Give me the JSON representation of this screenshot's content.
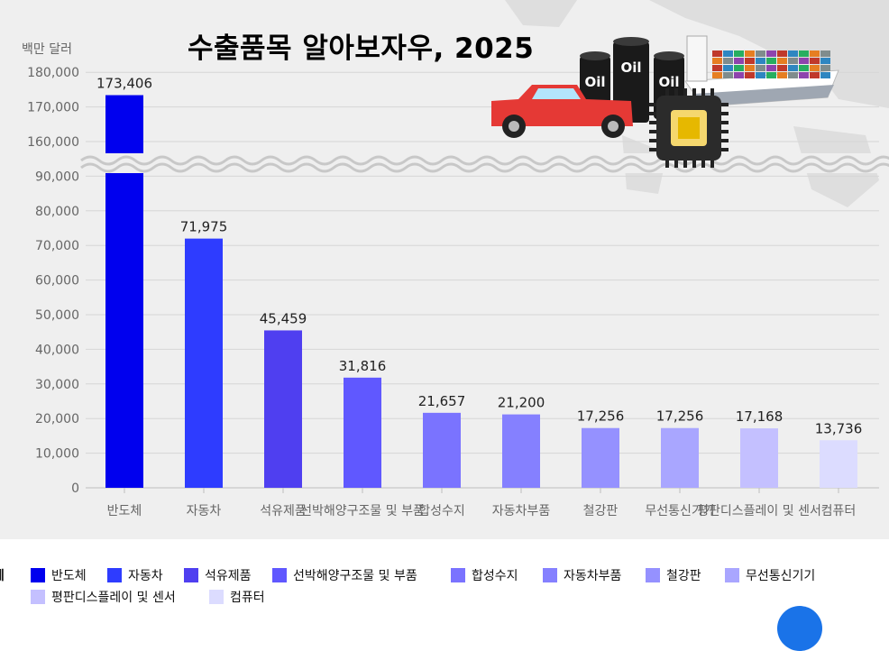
{
  "title": "수출품목 알아보자우, 2025",
  "unit": "백만 달러",
  "legend_title": "례",
  "illustration": {
    "oil_label": "Oil",
    "icons": [
      "pickup-truck-icon",
      "oil-barrel-icon",
      "semiconductor-chip-icon",
      "container-ship-icon",
      "world-map-icon"
    ]
  },
  "chart_data": {
    "type": "bar",
    "axis_break": {
      "from": 90000,
      "to": 160000
    },
    "ylim": [
      0,
      180000
    ],
    "yticks": [
      {
        "value": 0,
        "label": "0"
      },
      {
        "value": 10000,
        "label": "10,000"
      },
      {
        "value": 20000,
        "label": "20,000"
      },
      {
        "value": 30000,
        "label": "30,000"
      },
      {
        "value": 40000,
        "label": "40,000"
      },
      {
        "value": 50000,
        "label": "50,000"
      },
      {
        "value": 60000,
        "label": "60,000"
      },
      {
        "value": 70000,
        "label": "70,000"
      },
      {
        "value": 80000,
        "label": "80,000"
      },
      {
        "value": 90000,
        "label": "90,000"
      },
      {
        "value": 160000,
        "label": "160,000"
      },
      {
        "value": 170000,
        "label": "170,000"
      },
      {
        "value": 180000,
        "label": "180,000"
      }
    ],
    "categories": [
      "반도체",
      "자동차",
      "석유제품",
      "선박해양구조물 및 부품",
      "합성수지",
      "자동차부품",
      "철강판",
      "무선통신기기",
      "평판디스플레이 및 센서",
      "컴퓨터"
    ],
    "values": [
      173406,
      71975,
      45459,
      31816,
      21657,
      21200,
      17256,
      17256,
      17168,
      13736
    ],
    "value_labels": [
      "173,406",
      "71,975",
      "45,459",
      "31,816",
      "21,657",
      "21,200",
      "17,256",
      "17,256",
      "17,168",
      "13,736"
    ],
    "colors": [
      "#0000ee",
      "#2e3cff",
      "#4f3ff0",
      "#6058ff",
      "#7a73ff",
      "#8580ff",
      "#9591ff",
      "#a9a6ff",
      "#c4c0ff",
      "#dcdcff"
    ],
    "grid": true,
    "legend_position": "bottom"
  }
}
